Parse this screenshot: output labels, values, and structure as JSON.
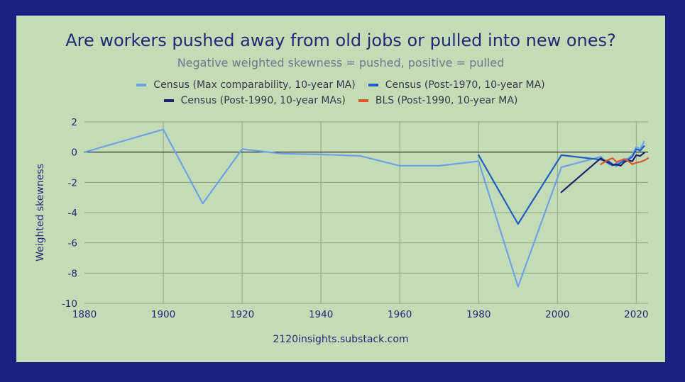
{
  "chart_data": {
    "type": "line",
    "title": "Are workers pushed away from old jobs or pulled into new ones?",
    "subtitle": "Negative weighted skewness = pushed, positive = pulled",
    "xlabel": "",
    "ylabel": "Weighted skewness",
    "xlim": [
      1880,
      2023
    ],
    "ylim": [
      -10,
      2
    ],
    "x_ticks": [
      1880,
      1900,
      1920,
      1940,
      1960,
      1980,
      2000,
      2020
    ],
    "y_ticks": [
      2,
      0,
      -2,
      -4,
      -6,
      -8,
      -10
    ],
    "grid": true,
    "legend_position": "top",
    "zero_line": true,
    "series": [
      {
        "name": "Census (Max comparability, 10-year MA)",
        "color": "#6ea2e6",
        "x": [
          1880,
          1900,
          1910,
          1920,
          1930,
          1940,
          1950,
          1960,
          1970,
          1980,
          1990,
          2001,
          2011,
          2013,
          2014,
          2015,
          2016,
          2017,
          2018,
          2019,
          2020,
          2021,
          2022
        ],
        "y": [
          0.0,
          1.5,
          -3.4,
          0.2,
          -0.1,
          -0.15,
          -0.25,
          -0.9,
          -0.9,
          -0.6,
          -8.9,
          -1.0,
          -0.3,
          -0.8,
          -0.9,
          -0.7,
          -0.7,
          -0.5,
          -0.4,
          -0.2,
          0.35,
          0.2,
          0.7
        ]
      },
      {
        "name": "Census (Post-1970, 10-year MA)",
        "color": "#1f5fc1",
        "x": [
          1980,
          1990,
          2001,
          2011,
          2013,
          2014,
          2015,
          2016,
          2017,
          2018,
          2019,
          2020,
          2021,
          2022
        ],
        "y": [
          -0.2,
          -4.75,
          -0.2,
          -0.5,
          -0.6,
          -0.8,
          -0.9,
          -0.7,
          -0.55,
          -0.5,
          -0.3,
          0.2,
          0.1,
          0.4
        ]
      },
      {
        "name": "Census (Post-1990, 10-year MAs)",
        "color": "#1b2170",
        "x": [
          2001,
          2011,
          2012,
          2013,
          2014,
          2015,
          2016,
          2017,
          2018,
          2019,
          2020,
          2021,
          2022
        ],
        "y": [
          -2.65,
          -0.4,
          -0.6,
          -0.7,
          -0.85,
          -0.8,
          -0.9,
          -0.65,
          -0.55,
          -0.6,
          -0.2,
          -0.25,
          -0.05
        ]
      },
      {
        "name": "BLS (Post-1990, 10-year MA)",
        "color": "#e0552a",
        "x": [
          2011,
          2012,
          2013,
          2014,
          2015,
          2016,
          2017,
          2018,
          2019,
          2020,
          2021,
          2022,
          2023
        ],
        "y": [
          -0.8,
          -0.65,
          -0.5,
          -0.4,
          -0.65,
          -0.55,
          -0.45,
          -0.6,
          -0.8,
          -0.7,
          -0.65,
          -0.55,
          -0.4
        ]
      }
    ],
    "footer": "2120insights.substack.com"
  },
  "colors": {
    "background": "#1b2180",
    "panel": "#c3dcb6",
    "grid": "#8aa985",
    "axis": "#000000",
    "text": "#1f2a78"
  }
}
